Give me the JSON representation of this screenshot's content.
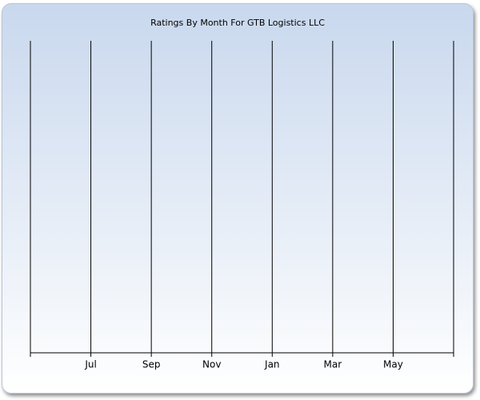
{
  "chart_data": {
    "type": "line",
    "title": "Ratings By Month For GTB Logistics LLC",
    "categories": [
      null,
      "Jul",
      "Sep",
      "Nov",
      "Jan",
      "Mar",
      "May",
      null
    ],
    "grid": true,
    "color": "#000000"
  }
}
